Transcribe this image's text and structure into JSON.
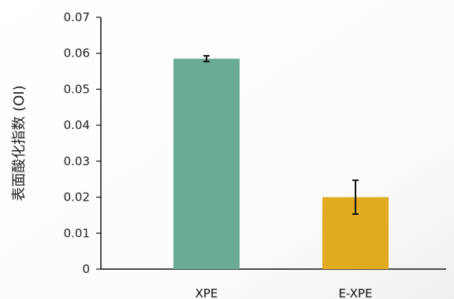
{
  "chart_data": {
    "type": "bar",
    "title": "",
    "xlabel": "",
    "ylabel": "表面酸化指数 (OI)",
    "ylim": [
      0,
      0.07
    ],
    "y_ticks": [
      "0",
      "0.01",
      "0.02",
      "0.03",
      "0.04",
      "0.05",
      "0.06",
      "0.07"
    ],
    "categories": [
      "XPE",
      "E-XPE"
    ],
    "values": [
      0.0585,
      0.02
    ],
    "errors": [
      0.0008,
      0.0047
    ],
    "bar_colors": [
      "#6aab94",
      "#e1aa1f"
    ],
    "grid": false,
    "legend": "none"
  }
}
